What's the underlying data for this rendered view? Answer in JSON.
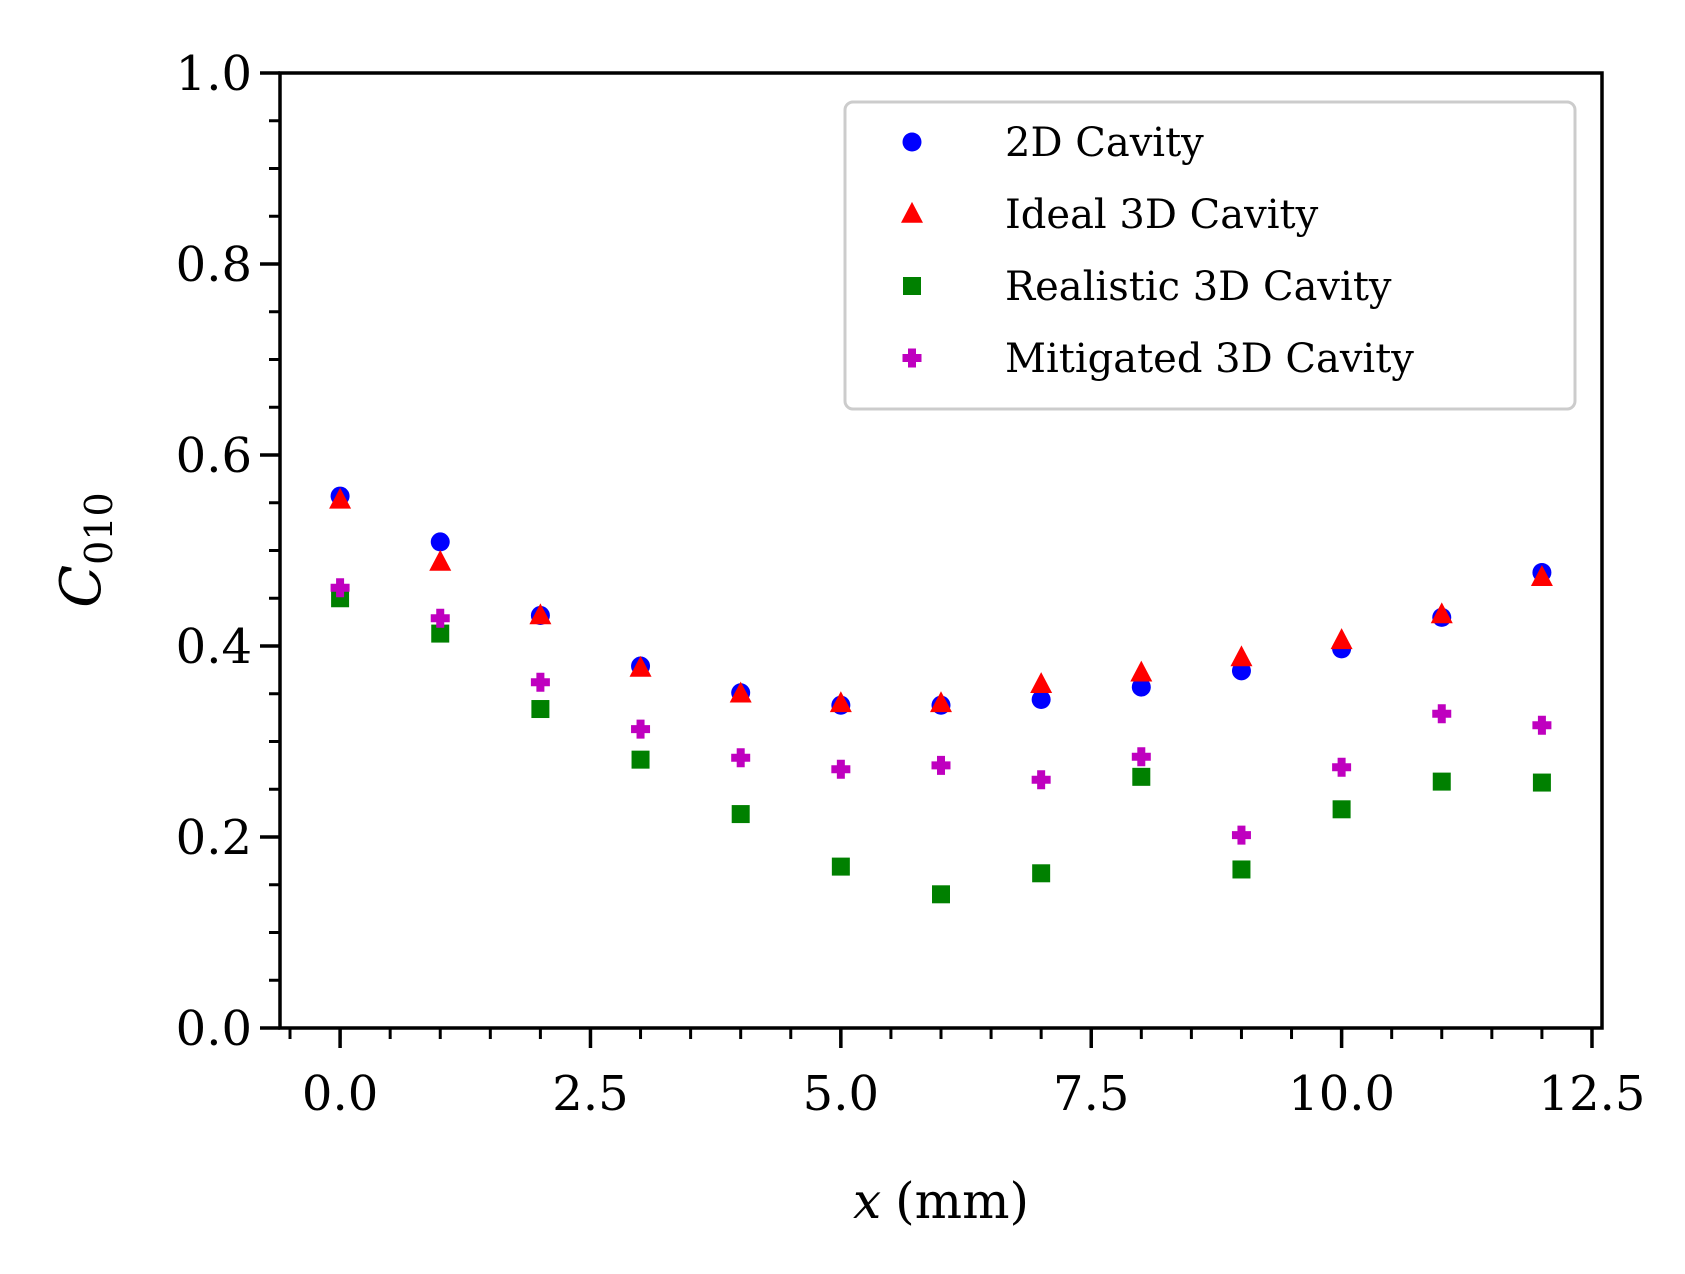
{
  "chart_data": {
    "type": "scatter",
    "xlabel_var": "x",
    "xlabel_unit": "(mm)",
    "ylabel_base": "C",
    "ylabel_sub": "010",
    "xlim": [
      -0.6,
      12.6
    ],
    "ylim": [
      0.0,
      1.0
    ],
    "xticks": [
      0.0,
      2.5,
      5.0,
      7.5,
      10.0,
      12.5
    ],
    "xtick_labels": [
      "0.0",
      "2.5",
      "5.0",
      "7.5",
      "10.0",
      "12.5"
    ],
    "yticks": [
      0.0,
      0.2,
      0.4,
      0.6,
      0.8,
      1.0
    ],
    "ytick_labels": [
      "0.0",
      "0.2",
      "0.4",
      "0.6",
      "0.8",
      "1.0"
    ],
    "x_minor_step": 0.5,
    "y_minor_step": 0.05,
    "grid": false,
    "legend_position": "top-right",
    "x": [
      0,
      1,
      2,
      3,
      4,
      5,
      6,
      7,
      8,
      9,
      10,
      11,
      12
    ],
    "series": [
      {
        "name": "2D Cavity",
        "marker": "circle",
        "color": "#0000ff",
        "values": [
          0.557,
          0.509,
          0.432,
          0.379,
          0.351,
          0.338,
          0.338,
          0.344,
          0.357,
          0.374,
          0.397,
          0.43,
          0.477
        ]
      },
      {
        "name": "Ideal 3D Cavity",
        "marker": "triangle",
        "color": "#ff0000",
        "values": [
          0.553,
          0.488,
          0.432,
          0.377,
          0.35,
          0.34,
          0.34,
          0.36,
          0.372,
          0.388,
          0.406,
          0.433,
          0.472
        ]
      },
      {
        "name": "Realistic 3D Cavity",
        "marker": "square",
        "color": "#008000",
        "values": [
          0.45,
          0.413,
          0.334,
          0.281,
          0.224,
          0.169,
          0.14,
          0.162,
          0.263,
          0.166,
          0.229,
          0.258,
          0.257
        ]
      },
      {
        "name": "Mitigated 3D Cavity",
        "marker": "plus",
        "color": "#bf00bf",
        "values": [
          0.461,
          0.429,
          0.362,
          0.313,
          0.283,
          0.271,
          0.275,
          0.26,
          0.284,
          0.202,
          0.273,
          0.329,
          0.317
        ]
      }
    ]
  }
}
